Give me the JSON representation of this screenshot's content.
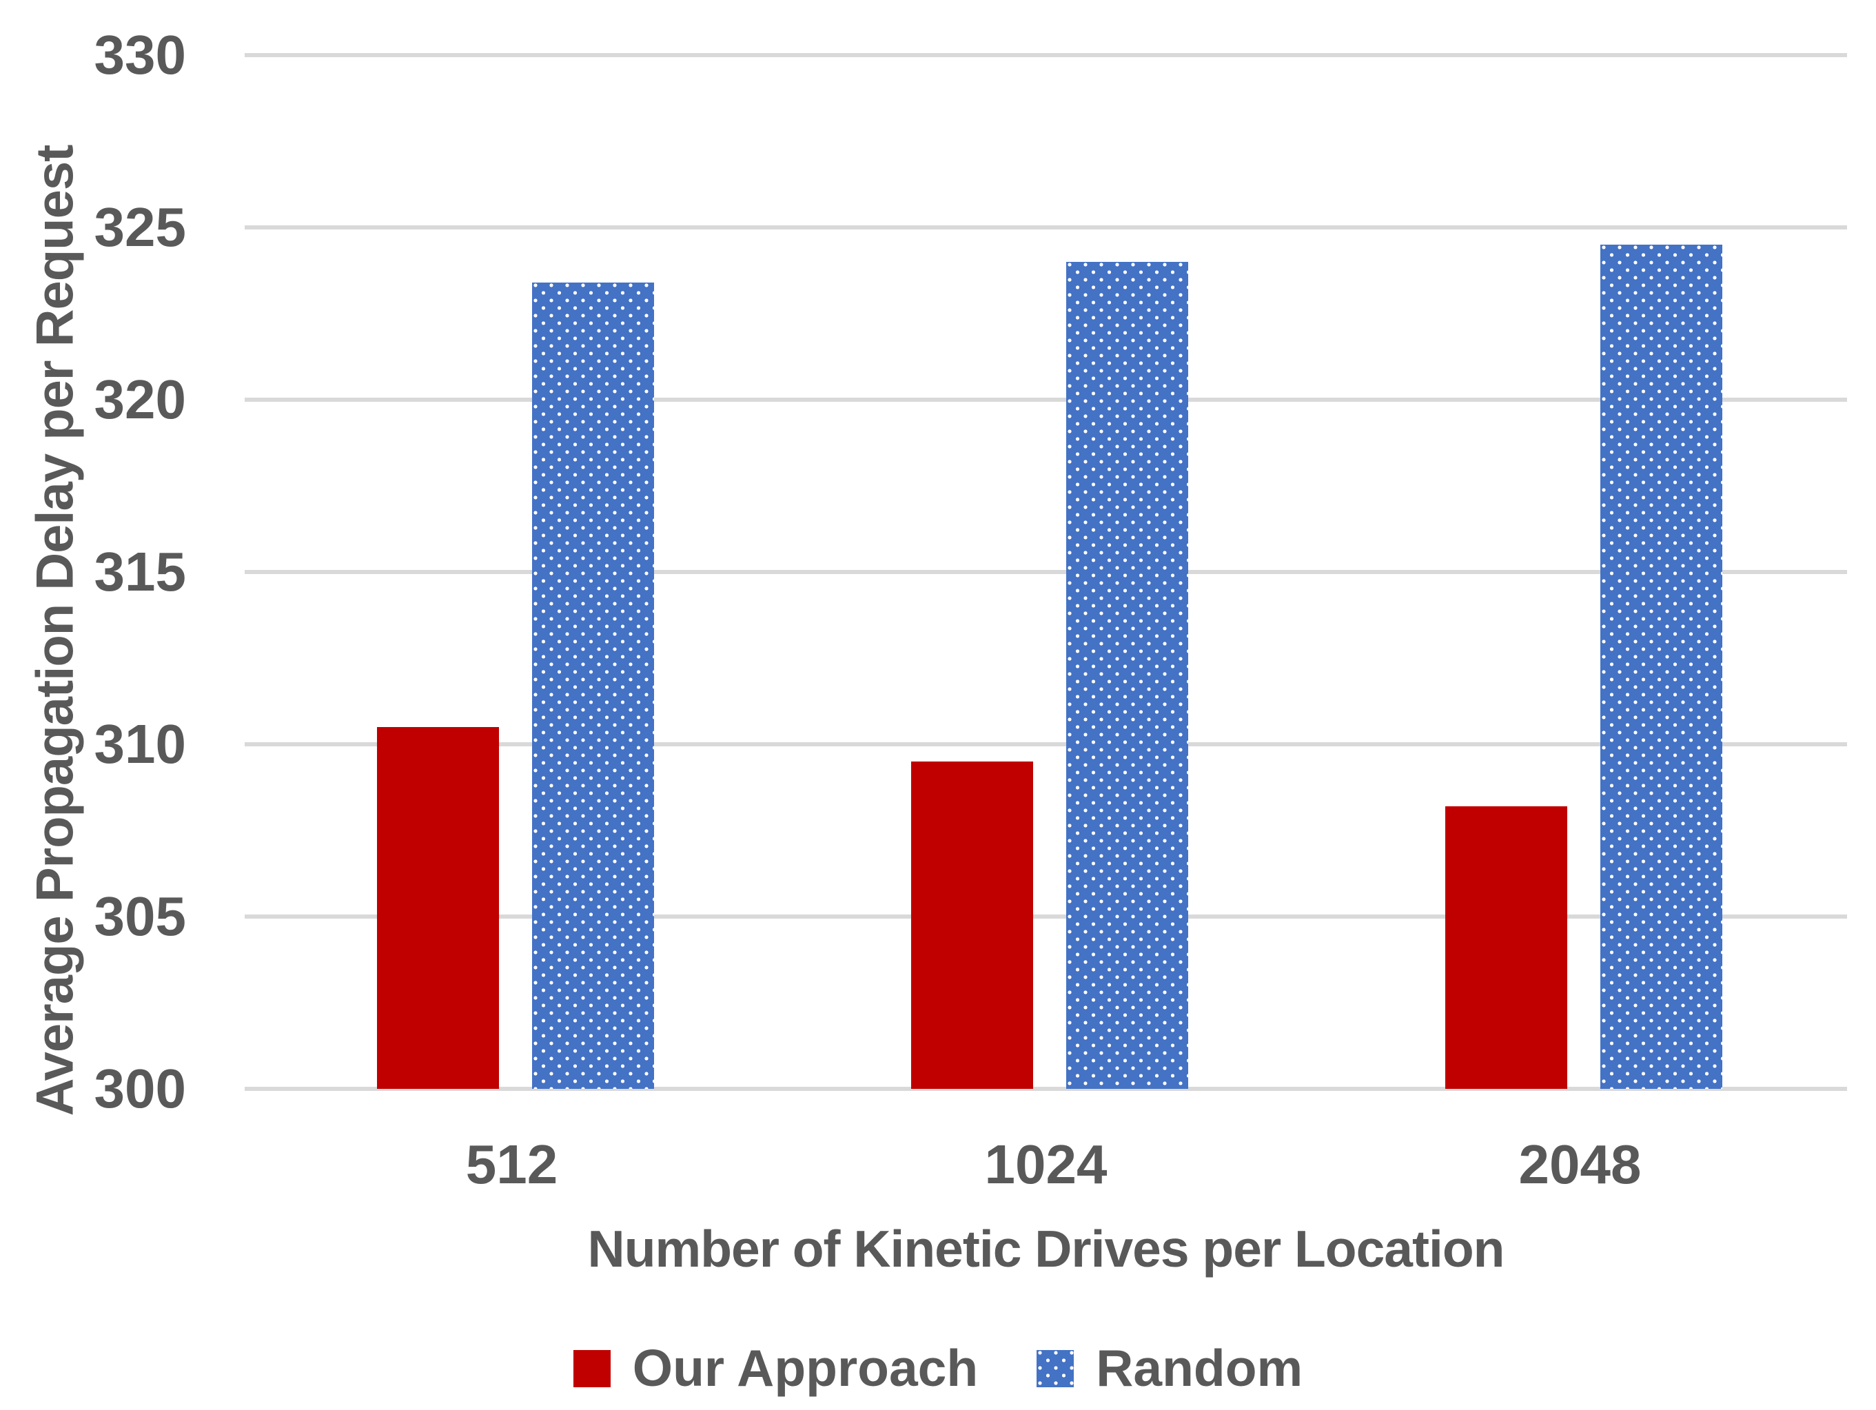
{
  "chart_data": {
    "type": "bar",
    "title": "",
    "ylabel": "Average Propagation Delay per Request",
    "xlabel": "Number of Kinetic Drives per Location",
    "categories": [
      "512",
      "1024",
      "2048"
    ],
    "series": [
      {
        "name": "Our Approach",
        "color": "#C00000",
        "pattern": "solid",
        "values": [
          310.5,
          309.5,
          308.2
        ]
      },
      {
        "name": "Random",
        "color": "#4472C4",
        "pattern": "white-dots",
        "values": [
          323.4,
          324.0,
          324.5
        ]
      }
    ],
    "ylim": [
      300,
      330
    ],
    "yticks": [
      330,
      325,
      320,
      315,
      310,
      305,
      300
    ],
    "grid": true,
    "legend_position": "bottom",
    "text_color": "#595959",
    "gridline_color": "#D9D9D9",
    "background_color": "#FFFFFF"
  }
}
